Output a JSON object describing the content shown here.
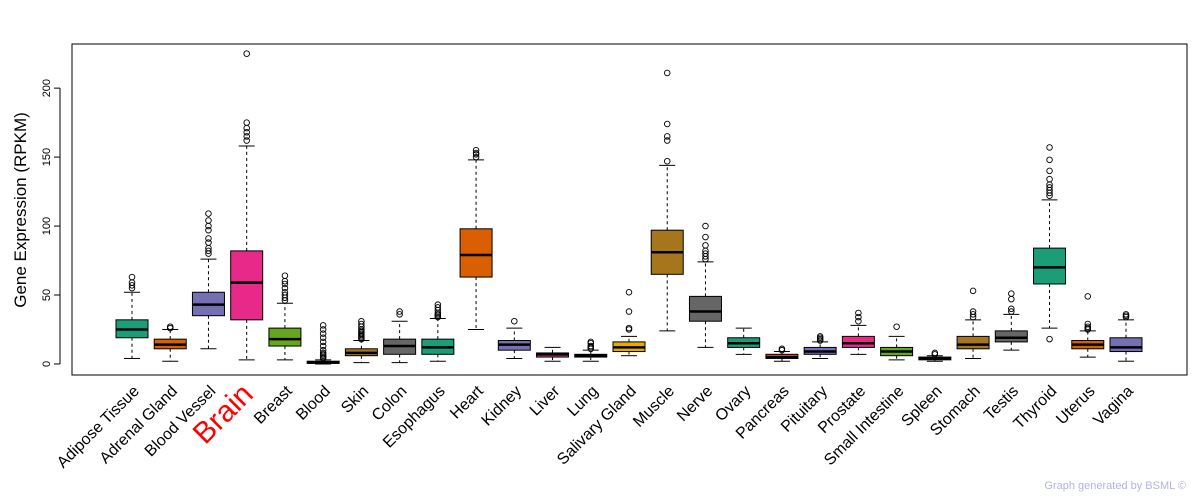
{
  "chart_data": {
    "type": "boxplot",
    "ylabel": "Gene Expression (RPKM)",
    "xlabel": "",
    "ylim": [
      -8,
      232
    ],
    "yticks": [
      0,
      50,
      100,
      150,
      200
    ],
    "highlight_category": "Brain",
    "highlight_color": "#ff0000",
    "categories": [
      {
        "label": "Adipose Tissue",
        "color": "#1b9e77",
        "whisker_low": 4,
        "q1": 19,
        "median": 25,
        "q3": 32,
        "whisker_high": 52,
        "outliers": [
          55,
          57,
          59,
          63
        ]
      },
      {
        "label": "Adrenal Gland",
        "color": "#d95f02",
        "whisker_low": 2,
        "q1": 11,
        "median": 14,
        "q3": 18,
        "whisker_high": 25,
        "outliers": [
          26,
          27
        ]
      },
      {
        "label": "Blood Vessel",
        "color": "#7570b3",
        "whisker_low": 11,
        "q1": 35,
        "median": 43,
        "q3": 52,
        "whisker_high": 76,
        "outliers": [
          80,
          82,
          84,
          88,
          91,
          97,
          100,
          104,
          109
        ]
      },
      {
        "label": "Brain",
        "color": "#e7298a",
        "whisker_low": 3,
        "q1": 32,
        "median": 59,
        "q3": 82,
        "whisker_high": 158,
        "outliers": [
          162,
          165,
          168,
          171,
          175,
          225
        ]
      },
      {
        "label": "Breast",
        "color": "#66a61e",
        "whisker_low": 3,
        "q1": 13,
        "median": 18,
        "q3": 26,
        "whisker_high": 44,
        "outliers": [
          46,
          48,
          50,
          52,
          55,
          58,
          60,
          64
        ]
      },
      {
        "label": "Blood",
        "color": "#e6ab02",
        "whisker_low": 0,
        "q1": 0.5,
        "median": 1,
        "q3": 2,
        "whisker_high": 3,
        "outliers": [
          4,
          5,
          6,
          7,
          8,
          10,
          13,
          16,
          19,
          22,
          25,
          28
        ]
      },
      {
        "label": "Skin",
        "color": "#a6761d",
        "whisker_low": 1,
        "q1": 6,
        "median": 8,
        "q3": 11,
        "whisker_high": 17,
        "outliers": [
          18,
          19,
          20,
          21,
          22,
          23,
          24,
          25,
          27,
          29,
          31
        ]
      },
      {
        "label": "Colon",
        "color": "#666666",
        "whisker_low": 1,
        "q1": 7,
        "median": 13,
        "q3": 18,
        "whisker_high": 31,
        "outliers": [
          36,
          38
        ]
      },
      {
        "label": "Esophagus",
        "color": "#1b9e77",
        "whisker_low": 2,
        "q1": 7,
        "median": 12,
        "q3": 18,
        "whisker_high": 33,
        "outliers": [
          34,
          35,
          36,
          37,
          39,
          41,
          43
        ]
      },
      {
        "label": "Heart",
        "color": "#d95f02",
        "whisker_low": 25,
        "q1": 63,
        "median": 79,
        "q3": 98,
        "whisker_high": 148,
        "outliers": [
          150,
          152,
          153,
          155
        ]
      },
      {
        "label": "Kidney",
        "color": "#7570b3",
        "whisker_low": 4,
        "q1": 10,
        "median": 14,
        "q3": 17,
        "whisker_high": 26,
        "outliers": [
          31
        ]
      },
      {
        "label": "Liver",
        "color": "#e7298a",
        "whisker_low": 2,
        "q1": 5,
        "median": 7,
        "q3": 8,
        "whisker_high": 12,
        "outliers": []
      },
      {
        "label": "Lung",
        "color": "#66a61e",
        "whisker_low": 2,
        "q1": 5,
        "median": 6,
        "q3": 7,
        "whisker_high": 10,
        "outliers": [
          11,
          12,
          13,
          15,
          16
        ]
      },
      {
        "label": "Salivary Gland",
        "color": "#e6ab02",
        "whisker_low": 6,
        "q1": 9,
        "median": 12,
        "q3": 16,
        "whisker_high": 20,
        "outliers": [
          25,
          26,
          38,
          52
        ]
      },
      {
        "label": "Muscle",
        "color": "#a6761d",
        "whisker_low": 24,
        "q1": 65,
        "median": 81,
        "q3": 97,
        "whisker_high": 144,
        "outliers": [
          147,
          162,
          165,
          174,
          211
        ]
      },
      {
        "label": "Nerve",
        "color": "#666666",
        "whisker_low": 12,
        "q1": 31,
        "median": 38,
        "q3": 49,
        "whisker_high": 74,
        "outliers": [
          76,
          78,
          80,
          82,
          86,
          92,
          100
        ]
      },
      {
        "label": "Ovary",
        "color": "#1b9e77",
        "whisker_low": 7,
        "q1": 12,
        "median": 15,
        "q3": 19,
        "whisker_high": 26,
        "outliers": []
      },
      {
        "label": "Pancreas",
        "color": "#d95f02",
        "whisker_low": 2,
        "q1": 4,
        "median": 5,
        "q3": 7,
        "whisker_high": 9,
        "outliers": [
          10,
          11
        ]
      },
      {
        "label": "Pituitary",
        "color": "#7570b3",
        "whisker_low": 4,
        "q1": 7,
        "median": 9,
        "q3": 12,
        "whisker_high": 16,
        "outliers": [
          17,
          18,
          19,
          20
        ]
      },
      {
        "label": "Prostate",
        "color": "#e7298a",
        "whisker_low": 7,
        "q1": 12,
        "median": 15,
        "q3": 20,
        "whisker_high": 28,
        "outliers": [
          31,
          34,
          37
        ]
      },
      {
        "label": "Small Intestine",
        "color": "#66a61e",
        "whisker_low": 3,
        "q1": 6,
        "median": 9,
        "q3": 12,
        "whisker_high": 20,
        "outliers": [
          27
        ]
      },
      {
        "label": "Spleen",
        "color": "#e6ab02",
        "whisker_low": 2,
        "q1": 3,
        "median": 4,
        "q3": 5,
        "whisker_high": 6,
        "outliers": [
          7,
          8
        ]
      },
      {
        "label": "Stomach",
        "color": "#a6761d",
        "whisker_low": 4,
        "q1": 11,
        "median": 14,
        "q3": 20,
        "whisker_high": 32,
        "outliers": [
          34,
          36,
          38,
          53
        ]
      },
      {
        "label": "Testis",
        "color": "#666666",
        "whisker_low": 10,
        "q1": 16,
        "median": 19,
        "q3": 24,
        "whisker_high": 36,
        "outliers": [
          38,
          40,
          47,
          51
        ]
      },
      {
        "label": "Thyroid",
        "color": "#1b9e77",
        "whisker_low": 26,
        "q1": 58,
        "median": 70,
        "q3": 84,
        "whisker_high": 119,
        "outliers": [
          18,
          122,
          124,
          126,
          128,
          130,
          134,
          140,
          148,
          157
        ]
      },
      {
        "label": "Uterus",
        "color": "#d95f02",
        "whisker_low": 5,
        "q1": 11,
        "median": 14,
        "q3": 17,
        "whisker_high": 24,
        "outliers": [
          25,
          26,
          27,
          29,
          49
        ]
      },
      {
        "label": "Vagina",
        "color": "#7570b3",
        "whisker_low": 2,
        "q1": 9,
        "median": 12,
        "q3": 19,
        "whisker_high": 32,
        "outliers": [
          34,
          35,
          36
        ]
      }
    ]
  },
  "footer": {
    "note": "Graph generated by BSML ©"
  }
}
